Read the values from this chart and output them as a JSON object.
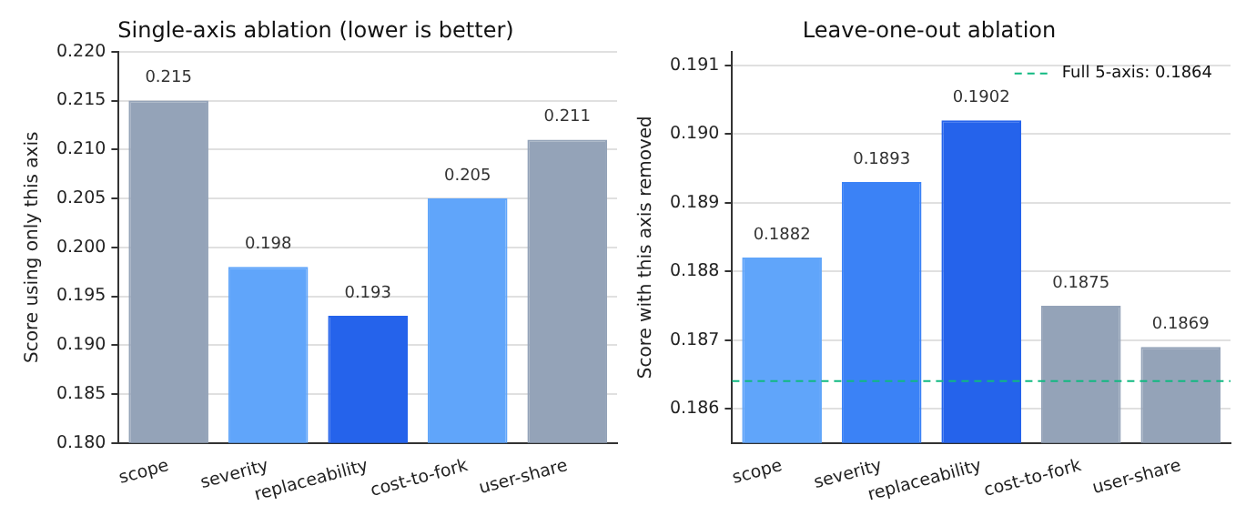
{
  "chart_data": [
    {
      "type": "bar",
      "title": "Single-axis ablation (lower is better)",
      "ylabel": "Score using only this axis",
      "categories": [
        "scope",
        "severity",
        "replaceability",
        "cost-to-fork",
        "user-share"
      ],
      "values": [
        0.215,
        0.198,
        0.193,
        0.205,
        0.211
      ],
      "colors": [
        "#94a3b8",
        "#60a5fa",
        "#2563eb",
        "#60a5fa",
        "#94a3b8"
      ],
      "ylim": [
        0.18,
        0.22
      ],
      "yticks": [
        {
          "value": 0.18,
          "label": "0.180"
        },
        {
          "value": 0.185,
          "label": "0.185"
        },
        {
          "value": 0.19,
          "label": "0.190"
        },
        {
          "value": 0.195,
          "label": "0.195"
        },
        {
          "value": 0.2,
          "label": "0.200"
        },
        {
          "value": 0.205,
          "label": "0.205"
        },
        {
          "value": 0.21,
          "label": "0.210"
        },
        {
          "value": 0.215,
          "label": "0.215"
        },
        {
          "value": 0.22,
          "label": "0.220"
        }
      ],
      "grid": "y",
      "data_labels": true
    },
    {
      "type": "bar",
      "title": "Leave-one-out ablation",
      "ylabel": "Score with this axis removed",
      "categories": [
        "scope",
        "severity",
        "replaceability",
        "cost-to-fork",
        "user-share"
      ],
      "values": [
        0.1882,
        0.1893,
        0.1902,
        0.1875,
        0.1869
      ],
      "colors": [
        "#60a5fa",
        "#3b82f6",
        "#2563eb",
        "#94a3b8",
        "#94a3b8"
      ],
      "ylim": [
        0.1855,
        0.1912
      ],
      "yticks": [
        0.186,
        0.187,
        0.188,
        0.189,
        {
          "value": 0.19,
          "label": "0.190"
        },
        0.191
      ],
      "grid": "y",
      "data_labels": true,
      "legend": "top right",
      "ref_lines": [
        {
          "axis": "y",
          "value": 0.1864,
          "label": "Full 5-axis: 0.1864",
          "color": "#10b981",
          "line_style": "dashed"
        }
      ]
    }
  ]
}
